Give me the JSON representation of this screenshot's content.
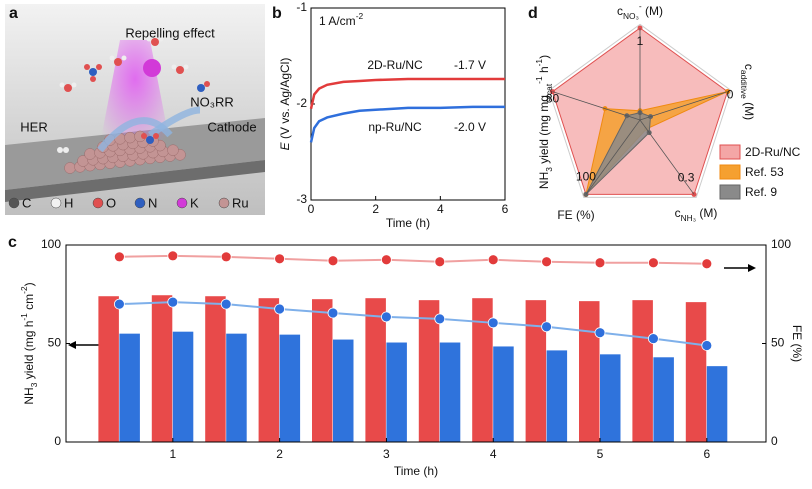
{
  "panel_a": {
    "panel_label": "a",
    "title": "Repelling effect",
    "reaction": "NO₃RR",
    "her": "HER",
    "cathode": "Cathode",
    "legend": [
      {
        "name": "C",
        "color": "#555555"
      },
      {
        "name": "H",
        "color": "#f2f2f2"
      },
      {
        "name": "O",
        "color": "#e05050"
      },
      {
        "name": "N",
        "color": "#2f5fc0"
      },
      {
        "name": "K",
        "color": "#d23ad8"
      },
      {
        "name": "Ru",
        "color": "#c39494"
      }
    ]
  },
  "chart_data": [
    {
      "type": "line",
      "panel_label": "b",
      "annotation": [
        "1 A/cm",
        {
          "sup": "-2"
        }
      ],
      "x_label": "Time (h)",
      "y_label": [
        {
          "i": "E"
        },
        " (V vs. Ag/AgCl)"
      ],
      "xlim": [
        0,
        6
      ],
      "ylim": [
        -3,
        -1
      ],
      "xticks": [
        0,
        2,
        4,
        6
      ],
      "yticks": [
        -3,
        -2,
        -1
      ],
      "x": [
        0,
        0.1,
        0.25,
        0.5,
        1,
        1.5,
        2,
        3,
        4,
        5,
        6
      ],
      "series": [
        {
          "name": "2D-Ru/NC",
          "color": "#e23b3b",
          "end_label": "-1.7 V",
          "values": [
            -2.05,
            -1.9,
            -1.84,
            -1.8,
            -1.77,
            -1.76,
            -1.75,
            -1.74,
            -1.74,
            -1.74,
            -1.74
          ]
        },
        {
          "name": "np-Ru/NC",
          "color": "#2f6fdc",
          "end_label": "-2.0 V",
          "values": [
            -2.4,
            -2.25,
            -2.18,
            -2.14,
            -2.1,
            -2.07,
            -2.06,
            -2.04,
            -2.04,
            -2.03,
            -2.03
          ]
        }
      ]
    },
    {
      "type": "bar-line",
      "panel_label": "c",
      "x_label": "Time (h)",
      "y_label": [
        "NH",
        {
          "sub": "3"
        },
        " yield (mg h",
        {
          "sup": "-1"
        },
        " cm",
        {
          "sup": "-2"
        },
        ")"
      ],
      "y2_label": "FE (%)",
      "xlim": [
        0,
        6.4
      ],
      "xticks": [
        1,
        2,
        3,
        4,
        5,
        6
      ],
      "ylim": [
        0,
        100
      ],
      "yticks": [
        0,
        50,
        100
      ],
      "y2lim": [
        0,
        100
      ],
      "y2ticks": [
        0,
        50,
        100
      ],
      "x": [
        0.5,
        1,
        1.5,
        2,
        2.5,
        3,
        3.5,
        4,
        4.5,
        5,
        5.5,
        6
      ],
      "series": [
        {
          "kind": "bar",
          "color": "#e84a4a",
          "values": [
            74,
            74.5,
            74,
            73,
            72.5,
            73,
            72,
            73,
            72,
            71.5,
            72,
            71
          ]
        },
        {
          "kind": "bar",
          "color": "#2f73dc",
          "values": [
            55,
            56,
            55,
            54.5,
            52,
            50.5,
            50.5,
            48.5,
            46.5,
            44.5,
            43,
            38.5
          ]
        },
        {
          "kind": "line",
          "axis": "y2",
          "color": "#f0a0a0",
          "dot": "#e23b3b",
          "values": [
            94,
            94.5,
            94,
            93,
            92,
            92.5,
            91.5,
            92.5,
            91.5,
            91,
            91,
            90.5
          ]
        },
        {
          "kind": "line",
          "axis": "y2",
          "color": "#7fb0ea",
          "dot": "#2f6fdc",
          "values": [
            70,
            71,
            70,
            67.5,
            65.5,
            63.5,
            62.5,
            60.5,
            58.5,
            55.5,
            52.5,
            49
          ]
        }
      ]
    },
    {
      "type": "radar",
      "panel_label": "d",
      "rlim": [
        0,
        1
      ],
      "axes": [
        {
          "label": [
            "c",
            {
              "sub": "NO₃"
            },
            {
              "sup": "-"
            },
            " (M)"
          ],
          "end_label": "1"
        },
        {
          "label": [
            "c",
            {
              "sub": "additive"
            },
            " (M)"
          ],
          "end_label": "0"
        },
        {
          "label": [
            "c",
            {
              "sub": "NH₃"
            },
            " (M)"
          ],
          "end_label": "0.3"
        },
        {
          "label": [
            "FE (%)"
          ],
          "end_label": "100"
        },
        {
          "label": [
            "NH",
            {
              "sub": "3"
            },
            " yield (mg mg",
            {
              "sub": "cat"
            },
            {
              "sup": "-1"
            },
            " h",
            {
              "sup": "-1"
            },
            ")"
          ],
          "end_label": "80"
        }
      ],
      "series": [
        {
          "name": "2D-Ru/NC",
          "color": "#f4a6a6",
          "edge": "#e05050",
          "values": [
            1,
            1,
            1,
            1,
            1
          ]
        },
        {
          "name": "Ref. 53",
          "color": "#f5a030",
          "edge": "#f08a10",
          "values": [
            0.1,
            1,
            0.12,
            1,
            0.4
          ]
        },
        {
          "name": "Ref. 9",
          "color": "#8a8a8a",
          "edge": "#666666",
          "values": [
            0.08,
            0.12,
            0.17,
            1,
            0.15
          ]
        }
      ]
    }
  ]
}
